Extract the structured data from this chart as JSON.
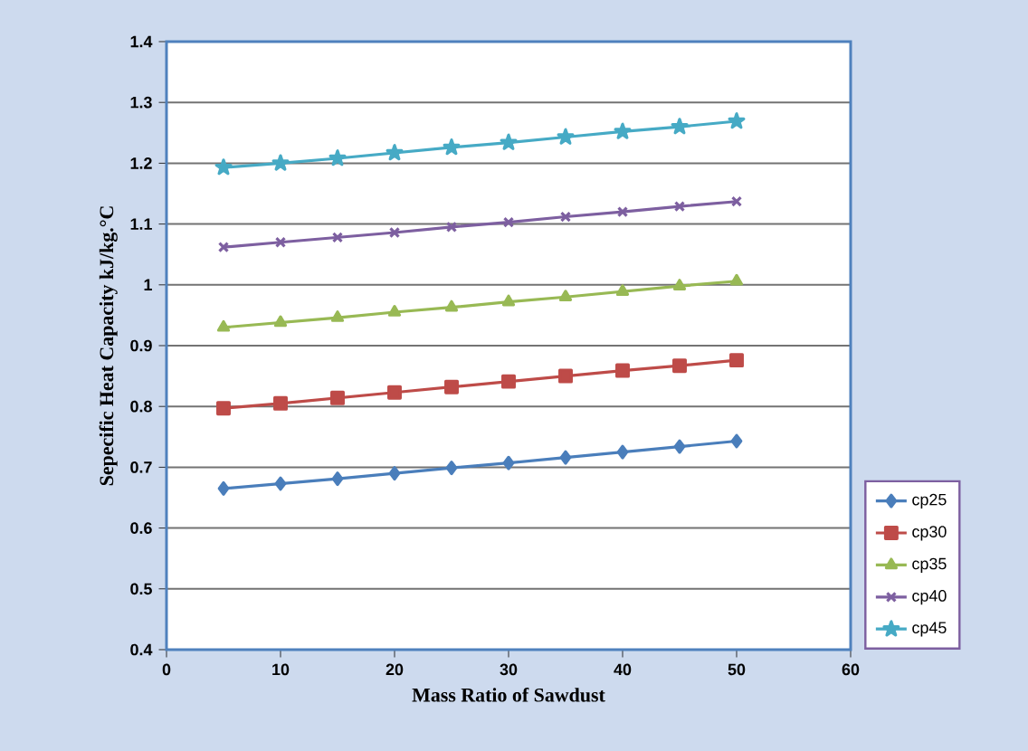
{
  "chart_data": {
    "type": "line",
    "xlabel": "Mass Ratio of Sawdust",
    "ylabel": "Sepecific Heat Capacity kJ/kg.°C",
    "x": [
      5,
      10,
      15,
      20,
      25,
      30,
      35,
      40,
      45,
      50
    ],
    "series": [
      {
        "name": "cp25",
        "color": "#4a7ebb",
        "marker": "diamond",
        "values": [
          0.665,
          0.673,
          0.681,
          0.69,
          0.699,
          0.707,
          0.716,
          0.725,
          0.734,
          0.743
        ]
      },
      {
        "name": "cp30",
        "color": "#be4b48",
        "marker": "square",
        "values": [
          0.797,
          0.805,
          0.814,
          0.823,
          0.832,
          0.841,
          0.85,
          0.859,
          0.867,
          0.876
        ]
      },
      {
        "name": "cp35",
        "color": "#98b954",
        "marker": "triangle",
        "values": [
          0.93,
          0.938,
          0.946,
          0.955,
          0.963,
          0.972,
          0.98,
          0.989,
          0.998,
          1.006
        ]
      },
      {
        "name": "cp40",
        "color": "#7d5fa0",
        "marker": "cross",
        "values": [
          1.062,
          1.07,
          1.078,
          1.086,
          1.095,
          1.103,
          1.112,
          1.12,
          1.129,
          1.137
        ]
      },
      {
        "name": "cp45",
        "color": "#46aac5",
        "marker": "star",
        "values": [
          1.193,
          1.2,
          1.208,
          1.217,
          1.226,
          1.234,
          1.243,
          1.252,
          1.26,
          1.269
        ]
      }
    ],
    "xlim": [
      0,
      60
    ],
    "xticks": [
      0,
      10,
      20,
      30,
      40,
      50,
      60
    ],
    "ylim": [
      0.4,
      1.4
    ],
    "yticks": [
      0.4,
      0.5,
      0.6,
      0.7,
      0.8,
      0.9,
      1,
      1.1,
      1.2,
      1.3,
      1.4
    ],
    "grid": "y",
    "legend": "bottom right",
    "line_style": "solid"
  }
}
